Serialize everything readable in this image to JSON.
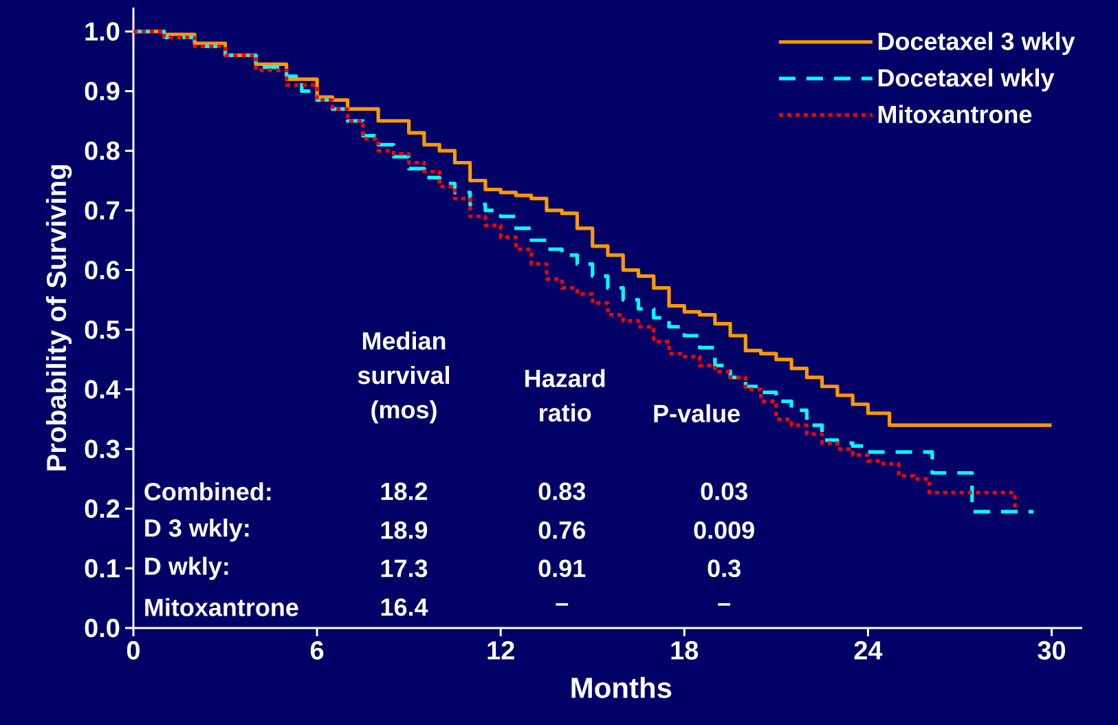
{
  "chart_data": {
    "type": "step",
    "xlabel": "Months",
    "ylabel": "Probability of Surviving",
    "xlim": [
      0,
      31
    ],
    "ylim": [
      0,
      1.04
    ],
    "xticks": [
      0,
      6,
      12,
      18,
      24,
      30
    ],
    "yticks": [
      {
        "value": 0,
        "label": "0.0"
      },
      {
        "value": 0.1,
        "label": "0.1"
      },
      {
        "value": 0.2,
        "label": "0.2"
      },
      {
        "value": 0.3,
        "label": "0.3"
      },
      {
        "value": 0.4,
        "label": "0.4"
      },
      {
        "value": 0.5,
        "label": "0.5"
      },
      {
        "value": 0.6,
        "label": "0.6"
      },
      {
        "value": 0.7,
        "label": "0.7"
      },
      {
        "value": 0.8,
        "label": "0.8"
      },
      {
        "value": 0.9,
        "label": "0.9"
      },
      {
        "value": 1.0,
        "label": "1.0"
      }
    ],
    "legend": "top right",
    "series": [
      {
        "name": "Docetaxel 3 wkly",
        "color": "#ff9900",
        "line_style": "solid",
        "x": [
          0,
          1,
          2,
          3,
          4,
          5,
          6,
          6.5,
          7,
          7.5,
          8,
          8.5,
          9,
          9.5,
          10,
          10.5,
          11,
          11.5,
          12,
          12.5,
          13,
          13.5,
          14,
          14.5,
          15,
          15.5,
          16,
          16.5,
          17,
          17.5,
          18,
          18.5,
          19,
          19.5,
          20,
          20.5,
          21,
          21.5,
          22,
          22.5,
          23,
          23.5,
          24,
          24.7,
          30
        ],
        "values": [
          1.0,
          0.995,
          0.98,
          0.96,
          0.945,
          0.92,
          0.89,
          0.885,
          0.87,
          0.87,
          0.85,
          0.85,
          0.83,
          0.81,
          0.8,
          0.78,
          0.75,
          0.735,
          0.73,
          0.725,
          0.72,
          0.7,
          0.695,
          0.67,
          0.64,
          0.625,
          0.6,
          0.59,
          0.57,
          0.54,
          0.53,
          0.525,
          0.51,
          0.49,
          0.465,
          0.46,
          0.45,
          0.435,
          0.42,
          0.405,
          0.39,
          0.375,
          0.36,
          0.34,
          0.34
        ]
      },
      {
        "name": "Docetaxel wkly",
        "color": "#00ffff",
        "line_style": "dashed",
        "x": [
          0,
          1,
          2,
          3,
          4,
          5,
          5.5,
          6,
          6.5,
          7,
          7.5,
          8,
          8.5,
          9,
          9.5,
          10,
          10.5,
          11,
          11.5,
          12,
          12.5,
          13,
          13.5,
          14,
          14.5,
          15,
          15.5,
          16,
          16.5,
          17,
          17.5,
          18,
          18.5,
          19,
          19.5,
          20,
          20.5,
          21,
          21.5,
          22,
          22.5,
          23,
          23.5,
          24,
          26.1,
          27.4,
          29.4
        ],
        "values": [
          1.0,
          0.99,
          0.975,
          0.96,
          0.94,
          0.925,
          0.9,
          0.885,
          0.87,
          0.85,
          0.825,
          0.81,
          0.79,
          0.77,
          0.755,
          0.745,
          0.73,
          0.71,
          0.7,
          0.69,
          0.67,
          0.65,
          0.635,
          0.625,
          0.61,
          0.59,
          0.57,
          0.55,
          0.535,
          0.52,
          0.505,
          0.49,
          0.47,
          0.44,
          0.42,
          0.405,
          0.395,
          0.38,
          0.365,
          0.34,
          0.315,
          0.31,
          0.305,
          0.295,
          0.26,
          0.195,
          0.195
        ]
      },
      {
        "name": "Mitoxantrone",
        "color": "#ff0000",
        "line_style": "dotted",
        "x": [
          0,
          1,
          2,
          3,
          4,
          5,
          6,
          6.5,
          7,
          7.5,
          8,
          8.5,
          9,
          9.5,
          10,
          10.5,
          11,
          11.5,
          12,
          12.5,
          13,
          13.5,
          14,
          14.5,
          15,
          15.5,
          16,
          16.5,
          17,
          17.5,
          18,
          18.5,
          19,
          19.5,
          20,
          20.5,
          21,
          21.5,
          22,
          22.5,
          23,
          23.5,
          24,
          24.5,
          25,
          25.5,
          26,
          28.8,
          28.9
        ],
        "values": [
          1.0,
          0.99,
          0.975,
          0.96,
          0.935,
          0.91,
          0.885,
          0.87,
          0.85,
          0.82,
          0.8,
          0.795,
          0.78,
          0.765,
          0.74,
          0.72,
          0.69,
          0.675,
          0.655,
          0.635,
          0.61,
          0.585,
          0.57,
          0.56,
          0.545,
          0.525,
          0.515,
          0.505,
          0.48,
          0.46,
          0.455,
          0.44,
          0.43,
          0.42,
          0.4,
          0.38,
          0.35,
          0.34,
          0.325,
          0.31,
          0.3,
          0.29,
          0.28,
          0.275,
          0.255,
          0.25,
          0.227,
          0.2,
          0.2
        ]
      }
    ],
    "annotations": [
      "Median survival (mos)",
      "Hazard ratio",
      "P-value",
      "Combined:",
      "18.2",
      "0.83",
      "0.03",
      "D  3 wkly:",
      "18.9",
      "0.76",
      "0.009",
      "D  wkly:",
      "17.3",
      "0.91",
      "0.3",
      "Mitoxantrone",
      "16.4",
      "–",
      "–"
    ]
  }
}
